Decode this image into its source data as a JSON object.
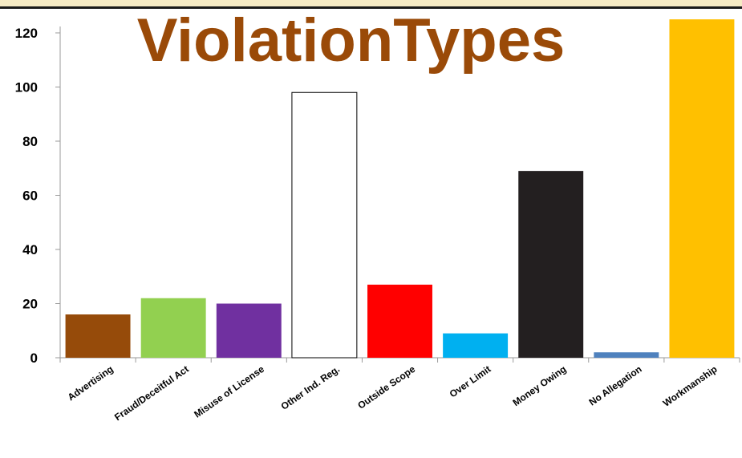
{
  "chart_data": {
    "type": "bar",
    "title": "ViolationTypes",
    "xlabel": "",
    "ylabel": "",
    "ylim": [
      0,
      120
    ],
    "yticks": [
      0,
      20,
      40,
      60,
      80,
      100,
      120
    ],
    "grid": false,
    "legend": "none",
    "categories": [
      "Advertising",
      "Fraud/Deceitful Act",
      "Misuse of License",
      "Other Ind. Reg.",
      "Outside Scope",
      "Over Limit",
      "Money Owing",
      "No Allegation",
      "Workmanship"
    ],
    "values": [
      16,
      22,
      20,
      98,
      27,
      9,
      69,
      2,
      125
    ],
    "colors": [
      "#964B0A",
      "#92D050",
      "#7030A0",
      "#FFFFFF",
      "#FF0000",
      "#00B0F0",
      "#231F20",
      "#4F81BD",
      "#FFC000"
    ]
  }
}
